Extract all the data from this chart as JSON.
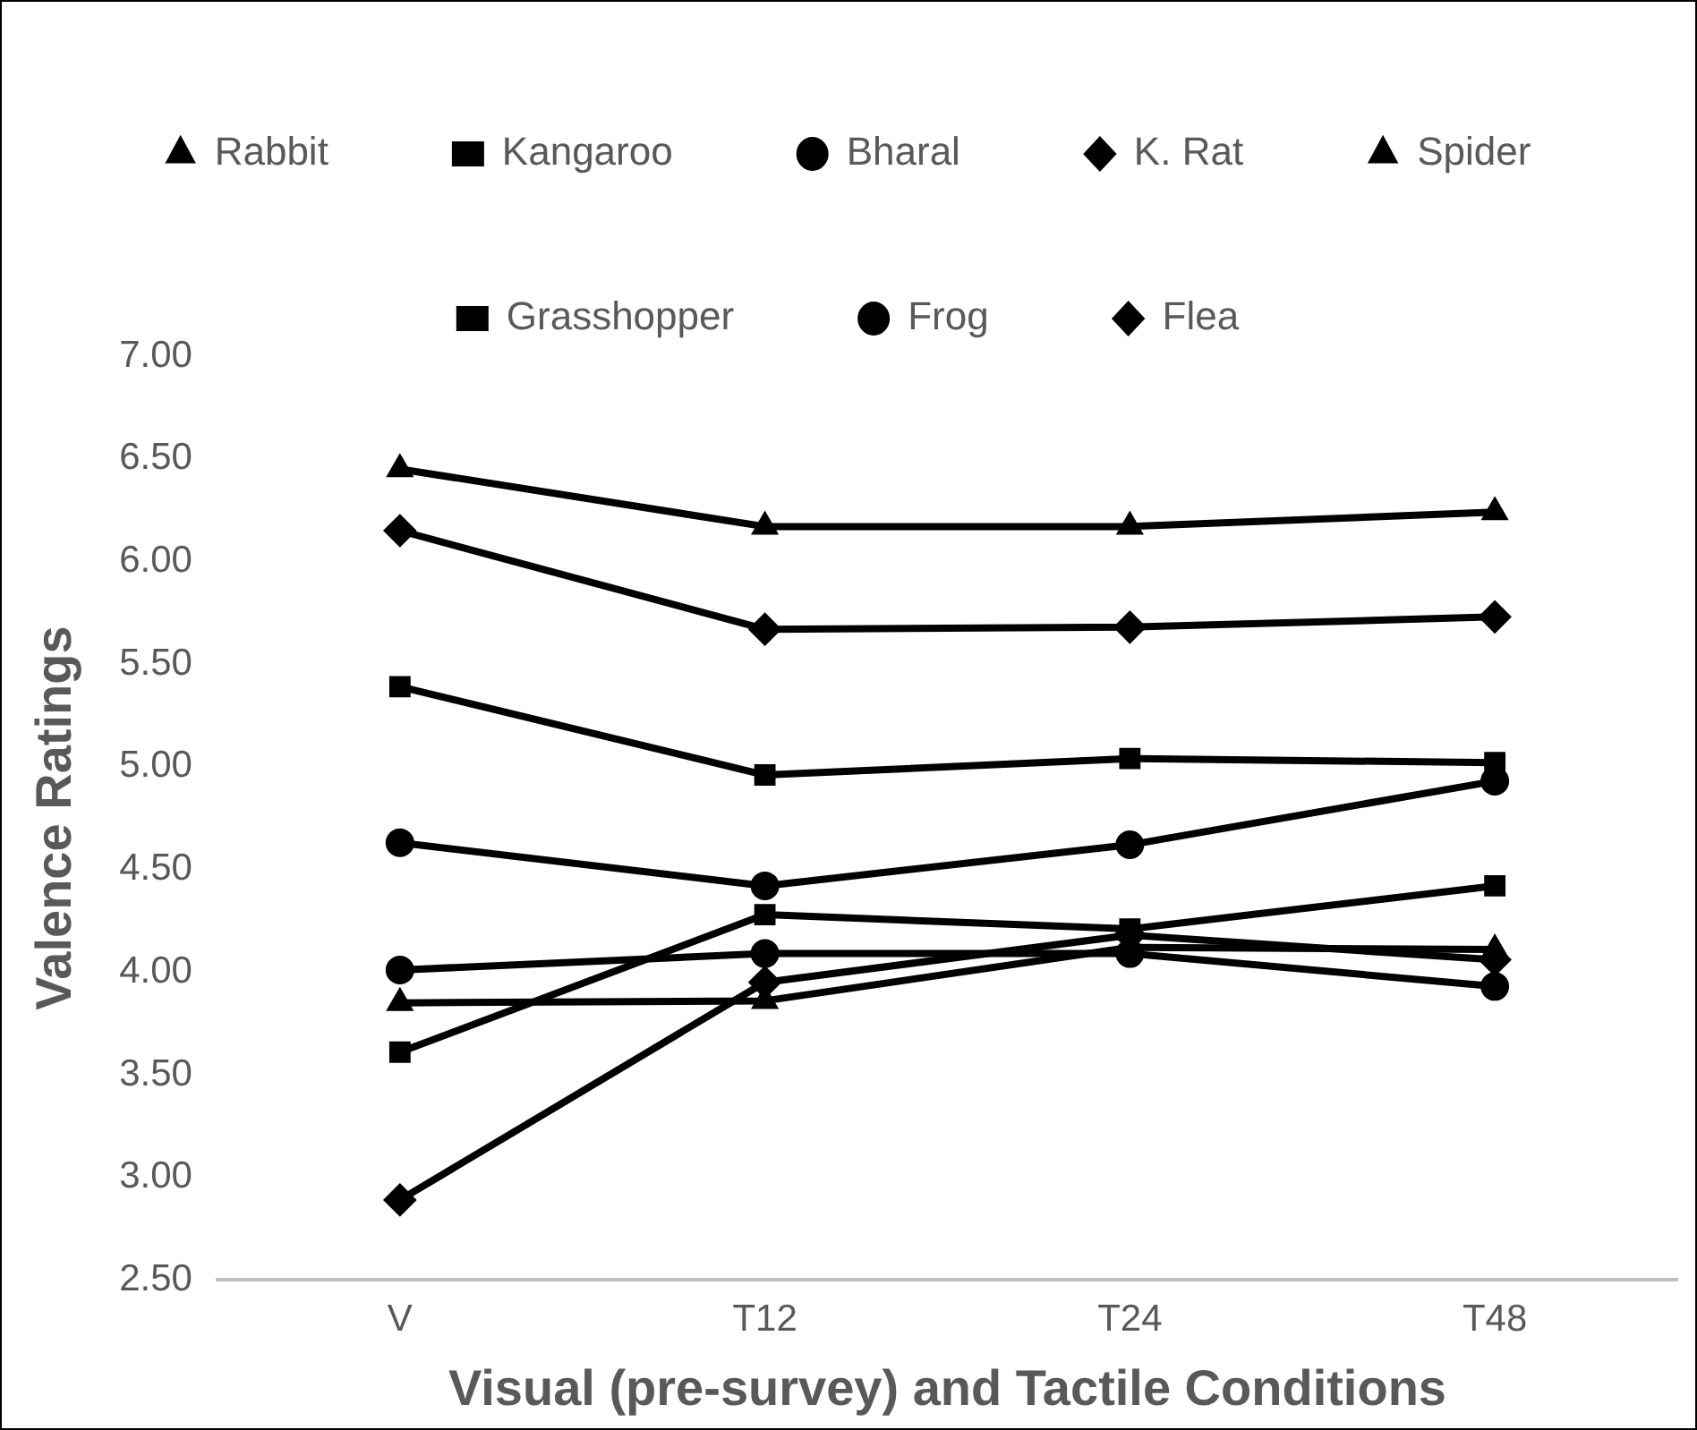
{
  "chart_data": {
    "type": "line",
    "xlabel": "Visual (pre-survey) and Tactile Conditions",
    "ylabel": "Valence Ratings",
    "categories": [
      "V",
      "T12",
      "T24",
      "T48"
    ],
    "ylim": [
      2.5,
      7
    ],
    "yticks": [
      {
        "value": 2.5,
        "label": "2.50"
      },
      {
        "value": 3,
        "label": "3.00"
      },
      {
        "value": 3.5,
        "label": "3.50"
      },
      {
        "value": 4,
        "label": "4.00"
      },
      {
        "value": 4.5,
        "label": "4.50"
      },
      {
        "value": 5,
        "label": "5.00"
      },
      {
        "value": 5.5,
        "label": "5.50"
      },
      {
        "value": 6,
        "label": "6.00"
      },
      {
        "value": 6.5,
        "label": "6.50"
      },
      {
        "value": 7,
        "label": "7.00"
      }
    ],
    "grid": false,
    "legend": "top",
    "line_style": "solid",
    "series": [
      {
        "name": "Rabbit",
        "color": "#000000",
        "marker": "triangle",
        "values": [
          3.85,
          3.86,
          4.12,
          4.11
        ]
      },
      {
        "name": "Kangaroo",
        "color": "#000000",
        "marker": "square",
        "values": [
          3.61,
          4.28,
          4.21,
          4.42
        ]
      },
      {
        "name": "Bharal",
        "color": "#000000",
        "marker": "circle",
        "values": [
          4.63,
          4.42,
          4.62,
          4.93
        ]
      },
      {
        "name": "K. Rat",
        "color": "#000000",
        "marker": "diamond",
        "values": [
          2.89,
          3.95,
          4.18,
          4.06
        ]
      },
      {
        "name": "Spider",
        "color": "#000000",
        "marker": "triangle",
        "values": [
          6.45,
          6.17,
          6.17,
          6.24
        ]
      },
      {
        "name": "Grasshopper",
        "color": "#000000",
        "marker": "square",
        "values": [
          5.39,
          4.96,
          5.04,
          5.02
        ]
      },
      {
        "name": "Frog",
        "color": "#000000",
        "marker": "circle",
        "values": [
          4.01,
          4.09,
          4.09,
          3.93
        ]
      },
      {
        "name": "Flea",
        "color": "#000000",
        "marker": "diamond",
        "values": [
          6.15,
          5.67,
          5.68,
          5.73
        ]
      }
    ]
  }
}
